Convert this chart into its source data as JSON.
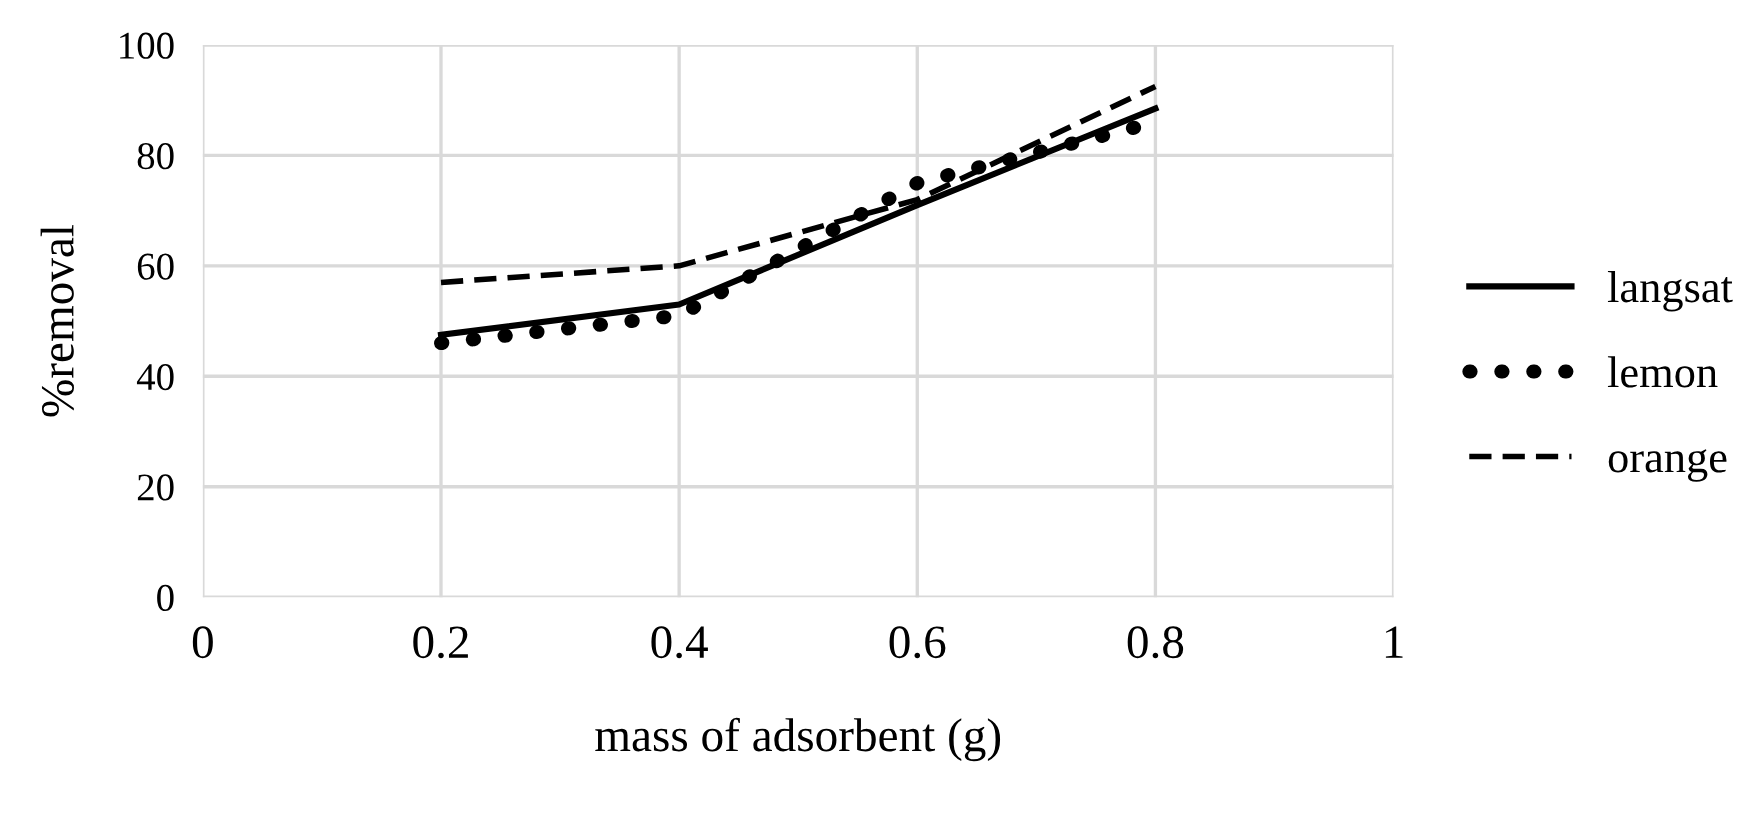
{
  "chart_data": {
    "type": "line",
    "xlabel": "mass of adsorbent (g)",
    "ylabel": "%removal",
    "x": [
      0.2,
      0.4,
      0.6,
      0.8
    ],
    "series": [
      {
        "name": "langsat",
        "color": "#000000",
        "line_style": "solid",
        "values": [
          47.5,
          53,
          71,
          88.5
        ]
      },
      {
        "name": "lemon",
        "color": "#000000",
        "line_style": "dotted",
        "values": [
          46,
          51,
          75,
          86
        ]
      },
      {
        "name": "orange",
        "color": "#000000",
        "line_style": "dashed",
        "values": [
          57,
          60,
          72,
          92.5
        ]
      }
    ],
    "xlim": [
      0,
      1
    ],
    "xticks": [
      0,
      0.2,
      0.4,
      0.6,
      0.8,
      1
    ],
    "ylim": [
      0,
      100
    ],
    "yticks": [
      0,
      20,
      40,
      60,
      80,
      100
    ],
    "grid": true,
    "legend": "right",
    "marker": "none"
  }
}
